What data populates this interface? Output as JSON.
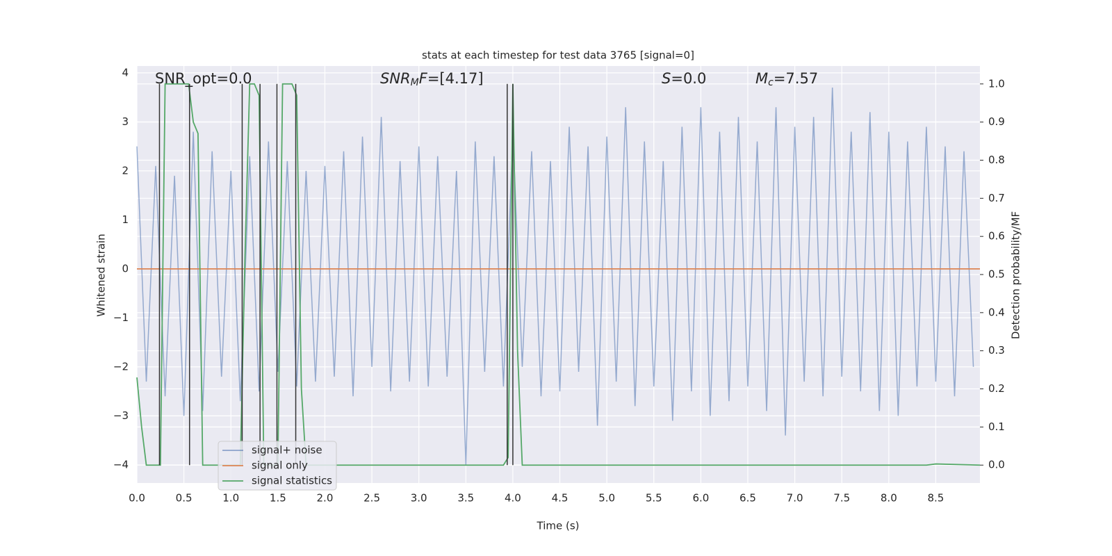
{
  "chart_data": {
    "type": "line",
    "title": "stats at each timestep for test data 3765 [signal=0]",
    "xlabel": "Time (s)",
    "ylabel": "Whitened strain",
    "y2label": "Detection probability/MF",
    "xlim": [
      0,
      8.97
    ],
    "ylim": [
      -4.37,
      4.14
    ],
    "y2lim": [
      -0.047,
      1.047
    ],
    "xticks": [
      {
        "value": 0,
        "label": "0.0"
      },
      {
        "value": 0.5,
        "label": "0.5"
      },
      {
        "value": 1,
        "label": "1.0"
      },
      {
        "value": 1.5,
        "label": "1.5"
      },
      {
        "value": 2,
        "label": "2.0"
      },
      {
        "value": 2.5,
        "label": "2.5"
      },
      {
        "value": 3,
        "label": "3.0"
      },
      {
        "value": 3.5,
        "label": "3.5"
      },
      {
        "value": 4,
        "label": "4.0"
      },
      {
        "value": 4.5,
        "label": "4.5"
      },
      {
        "value": 5,
        "label": "5.0"
      },
      {
        "value": 5.5,
        "label": "5.5"
      },
      {
        "value": 6,
        "label": "6.0"
      },
      {
        "value": 6.5,
        "label": "6.5"
      },
      {
        "value": 7,
        "label": "7.0"
      },
      {
        "value": 7.5,
        "label": "7.5"
      },
      {
        "value": 8,
        "label": "8.0"
      },
      {
        "value": 8.5,
        "label": "8.5"
      }
    ],
    "yticks": [
      {
        "value": -4,
        "label": "−4"
      },
      {
        "value": -3,
        "label": "−3"
      },
      {
        "value": -2,
        "label": "−2"
      },
      {
        "value": -1,
        "label": "−1"
      },
      0,
      1,
      2,
      3,
      4
    ],
    "y2ticks": [
      {
        "value": 0,
        "label": "0.0"
      },
      {
        "value": 0.1,
        "label": "0.1"
      },
      {
        "value": 0.2,
        "label": "0.2"
      },
      {
        "value": 0.3,
        "label": "0.3"
      },
      {
        "value": 0.4,
        "label": "0.4"
      },
      {
        "value": 0.5,
        "label": "0.5"
      },
      {
        "value": 0.6,
        "label": "0.6"
      },
      {
        "value": 0.7,
        "label": "0.7"
      },
      {
        "value": 0.8,
        "label": "0.8"
      },
      {
        "value": 0.9,
        "label": "0.9"
      },
      {
        "value": 1,
        "label": "1.0"
      }
    ],
    "grid": true,
    "legend": "lower left",
    "series": [
      {
        "name": "signal+ noise",
        "color": "#4c72b0",
        "x": [
          0,
          0.1,
          0.2,
          0.3,
          0.4,
          0.5,
          0.6,
          0.7,
          0.8,
          0.9,
          1,
          1.1,
          1.2,
          1.3,
          1.4,
          1.5,
          1.6,
          1.7,
          1.8,
          1.9,
          2,
          2.1,
          2.2,
          2.3,
          2.4,
          2.5,
          2.6,
          2.7,
          2.8,
          2.9,
          3,
          3.1,
          3.2,
          3.3,
          3.4,
          3.5,
          3.6,
          3.7,
          3.8,
          3.9,
          4,
          4.1,
          4.2,
          4.3,
          4.4,
          4.5,
          4.6,
          4.7,
          4.8,
          4.9,
          5,
          5.1,
          5.2,
          5.3,
          5.4,
          5.5,
          5.6,
          5.7,
          5.8,
          5.9,
          6,
          6.1,
          6.2,
          6.3,
          6.4,
          6.5,
          6.6,
          6.7,
          6.8,
          6.9,
          7,
          7.1,
          7.2,
          7.3,
          7.4,
          7.5,
          7.6,
          7.7,
          7.8,
          7.9,
          8,
          8.1,
          8.2,
          8.3,
          8.4,
          8.5,
          8.6,
          8.7,
          8.8,
          8.9
        ],
        "values": [
          2.5,
          -2.3,
          2.1,
          -2.6,
          1.9,
          -3.0,
          2.8,
          -2.9,
          2.4,
          -2.2,
          2.0,
          -2.7,
          2.3,
          -2.5,
          2.6,
          -2.1,
          2.2,
          -2.4,
          2.0,
          -2.3,
          2.1,
          -2.2,
          2.4,
          -2.6,
          2.7,
          -2.0,
          3.1,
          -2.5,
          2.2,
          -2.3,
          2.5,
          -2.4,
          2.3,
          -2.2,
          2.0,
          -4.0,
          2.6,
          -2.1,
          2.3,
          -2.4,
          2.8,
          -2.0,
          2.4,
          -2.6,
          2.2,
          -2.5,
          2.9,
          -2.1,
          2.5,
          -3.2,
          2.7,
          -2.3,
          3.3,
          -2.8,
          2.6,
          -2.4,
          2.2,
          -3.1,
          2.9,
          -2.5,
          3.3,
          -3.0,
          2.8,
          -2.7,
          3.1,
          -2.4,
          2.6,
          -2.9,
          3.3,
          -3.4,
          2.9,
          -2.3,
          3.1,
          -2.6,
          3.7,
          -2.2,
          2.8,
          -2.5,
          3.2,
          -2.9,
          2.8,
          -3.0,
          2.6,
          -2.4,
          2.9,
          -2.3,
          2.5,
          -2.6,
          2.4,
          -2.0
        ]
      },
      {
        "name": "signal only",
        "color": "#dd8452",
        "x": [
          0,
          8.97
        ],
        "values": [
          0,
          0
        ]
      },
      {
        "name": "signal statistics",
        "color": "#55a868",
        "axis": "y2",
        "x": [
          0,
          0.05,
          0.1,
          0.25,
          0.3,
          0.55,
          0.6,
          0.65,
          0.7,
          1.1,
          1.15,
          1.2,
          1.25,
          1.3,
          1.35,
          1.5,
          1.55,
          1.65,
          1.7,
          1.75,
          1.8,
          3.9,
          3.95,
          4.0,
          4.05,
          4.1,
          8.4,
          8.5,
          8.97
        ],
        "values": [
          0.23,
          0.1,
          0,
          0,
          1,
          1,
          0.9,
          0.87,
          0,
          0,
          0.55,
          1,
          1,
          0.97,
          0,
          0,
          1,
          1,
          0.97,
          0.2,
          0,
          0,
          0.02,
          1,
          0.3,
          0,
          0,
          0.003,
          0
        ]
      }
    ],
    "markers": {
      "color": "#333333",
      "x": [
        0.24,
        0.56,
        1.12,
        1.31,
        1.49,
        1.69,
        3.94,
        4.0
      ]
    },
    "annotations": [
      {
        "parts": [
          {
            "text": "SNR_opt=0.0"
          }
        ]
      },
      {
        "parts": [
          {
            "text": "SNR",
            "italic": true
          },
          {
            "text": "M",
            "italic": true,
            "sub": true
          },
          {
            "text": "F",
            "italic": true
          },
          {
            "text": "=[4.17]"
          }
        ]
      },
      {
        "parts": [
          {
            "text": "S",
            "italic": true
          },
          {
            "text": "=0.0"
          }
        ]
      },
      {
        "parts": [
          {
            "text": "M",
            "italic": true
          },
          {
            "text": "c",
            "italic": true,
            "sub": true
          },
          {
            "text": "=7.57"
          }
        ]
      }
    ]
  }
}
